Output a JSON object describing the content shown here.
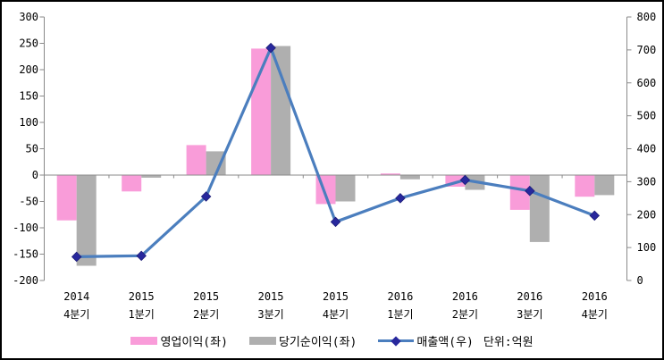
{
  "chart": {
    "background": "#FFFFFF",
    "border_color": "#000000",
    "axis_color": "#8A8A8A",
    "text_color": "#000000"
  },
  "chart_data": {
    "type": "combo",
    "title": "",
    "grid": "off",
    "legend_position": "bottom",
    "unit_note": "단위:억원",
    "categories": [
      {
        "line1": "2014",
        "line2": "4분기"
      },
      {
        "line1": "2015",
        "line2": "1분기"
      },
      {
        "line1": "2015",
        "line2": "2분기"
      },
      {
        "line1": "2015",
        "line2": "3분기"
      },
      {
        "line1": "2015",
        "line2": "4분기"
      },
      {
        "line1": "2016",
        "line2": "1분기"
      },
      {
        "line1": "2016",
        "line2": "2분기"
      },
      {
        "line1": "2016",
        "line2": "3분기"
      },
      {
        "line1": "2016",
        "line2": "4분기"
      }
    ],
    "series": [
      {
        "name": "영업이익(좌)",
        "type": "bar",
        "axis": "left",
        "color": "#F99CD9",
        "values": [
          -86,
          -31,
          57,
          240,
          -55,
          3,
          -22,
          -66,
          -41
        ]
      },
      {
        "name": "당기순이익(좌)",
        "type": "bar",
        "axis": "left",
        "color": "#AFAFAF",
        "values": [
          -172,
          -5,
          45,
          245,
          -50,
          -8,
          -28,
          -127,
          -38
        ]
      },
      {
        "name": "매출액(우)",
        "type": "line",
        "axis": "right",
        "color": "#4B7EBE",
        "marker": "diamond",
        "marker_color": "#28289D",
        "values": [
          72,
          75,
          255,
          706,
          178,
          250,
          305,
          272,
          197
        ]
      }
    ],
    "left_axis": {
      "min": -200,
      "max": 300,
      "step": 50,
      "tick_labels": [
        "300",
        "250",
        "200",
        "150",
        "100",
        "50",
        "0",
        "-50",
        "-100",
        "-150",
        "-200"
      ]
    },
    "right_axis": {
      "min": 0,
      "max": 800,
      "step": 100,
      "tick_labels": [
        "800",
        "700",
        "600",
        "500",
        "400",
        "300",
        "200",
        "100",
        "0"
      ]
    }
  }
}
